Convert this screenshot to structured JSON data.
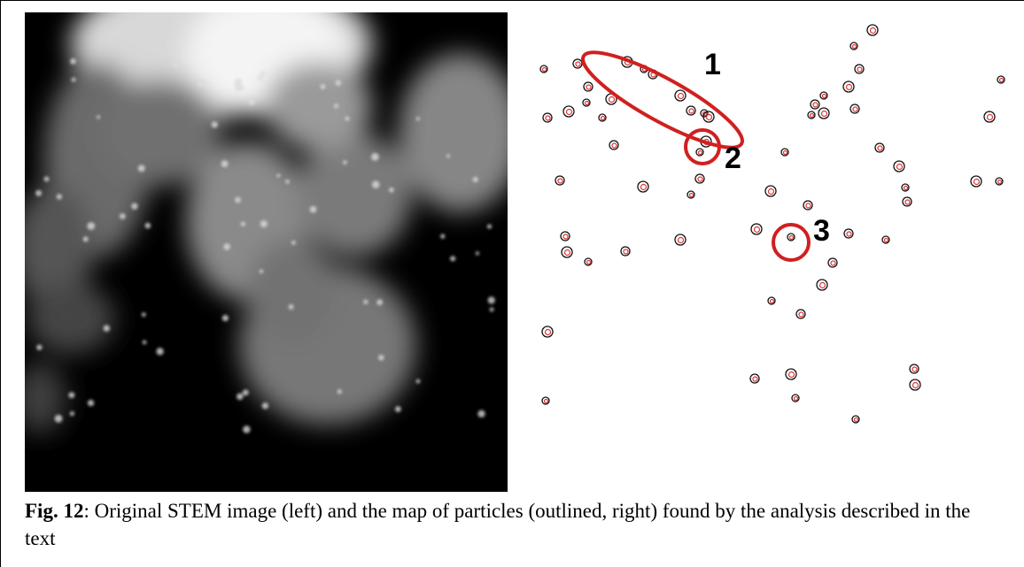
{
  "figure": {
    "labels": [
      "1",
      "2",
      "3"
    ],
    "caption": {
      "label": "Fig. 12",
      "text": ": Original STEM image (left) and the map of particles (outlined, right) found by the analysis described in the text"
    }
  }
}
